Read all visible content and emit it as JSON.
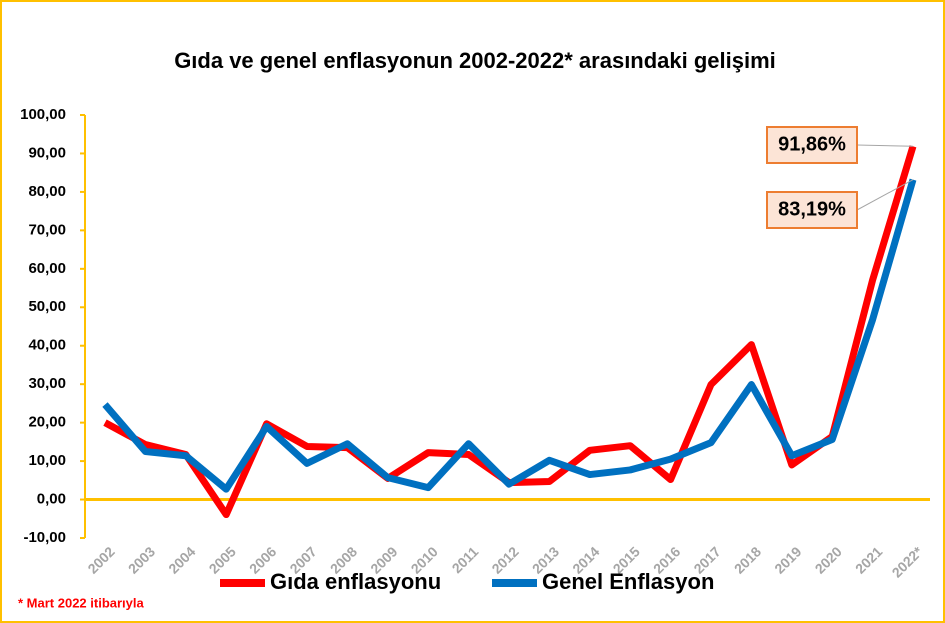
{
  "chart_data": {
    "type": "line",
    "title": "Gıda ve genel enflasyonun 2002-2022* arasındaki gelişimi",
    "footnote": "* Mart 2022 itibarıyla",
    "categories": [
      "2002",
      "2003",
      "2004",
      "2005",
      "2006",
      "2007",
      "2008",
      "2009",
      "2010",
      "2011",
      "2012",
      "2013",
      "2014",
      "2015",
      "2016",
      "2017",
      "2018",
      "2019",
      "2020",
      "2021",
      "2022*"
    ],
    "series": [
      {
        "name": "Gıda enflasyonu",
        "color": "#ff0000",
        "values": [
          20.0,
          14.3,
          11.7,
          -3.9,
          19.7,
          13.8,
          13.5,
          5.5,
          12.2,
          11.7,
          4.4,
          4.7,
          12.8,
          14.0,
          5.2,
          29.9,
          40.3,
          9.0,
          16.4,
          57.1,
          91.86
        ],
        "value_labels": [
          null,
          null,
          null,
          null,
          null,
          null,
          null,
          null,
          null,
          null,
          null,
          null,
          null,
          null,
          null,
          null,
          null,
          null,
          null,
          null,
          "91,86%"
        ]
      },
      {
        "name": "Genel Enflasyon",
        "color": "#0070c0",
        "values": [
          24.7,
          12.5,
          11.4,
          2.7,
          19.0,
          9.4,
          14.5,
          5.7,
          3.1,
          14.5,
          4.0,
          10.2,
          6.5,
          7.7,
          10.5,
          14.8,
          29.9,
          11.4,
          15.6,
          46.8,
          83.19
        ],
        "value_labels": [
          null,
          null,
          null,
          null,
          null,
          null,
          null,
          null,
          null,
          null,
          null,
          null,
          null,
          null,
          null,
          null,
          null,
          null,
          null,
          null,
          "83,19%"
        ]
      }
    ],
    "ylim": [
      -10,
      100
    ],
    "yticks": [
      {
        "value": -10,
        "label": "-10,00"
      },
      {
        "value": 0,
        "label": "0,00"
      },
      {
        "value": 10,
        "label": "10,00"
      },
      {
        "value": 20,
        "label": "20,00"
      },
      {
        "value": 30,
        "label": "30,00"
      },
      {
        "value": 40,
        "label": "40,00"
      },
      {
        "value": 50,
        "label": "50,00"
      },
      {
        "value": 60,
        "label": "60,00"
      },
      {
        "value": 70,
        "label": "70,00"
      },
      {
        "value": 80,
        "label": "80,00"
      },
      {
        "value": 90,
        "label": "90,00"
      },
      {
        "value": 100,
        "label": "100,00"
      }
    ],
    "legend": "bottom"
  }
}
